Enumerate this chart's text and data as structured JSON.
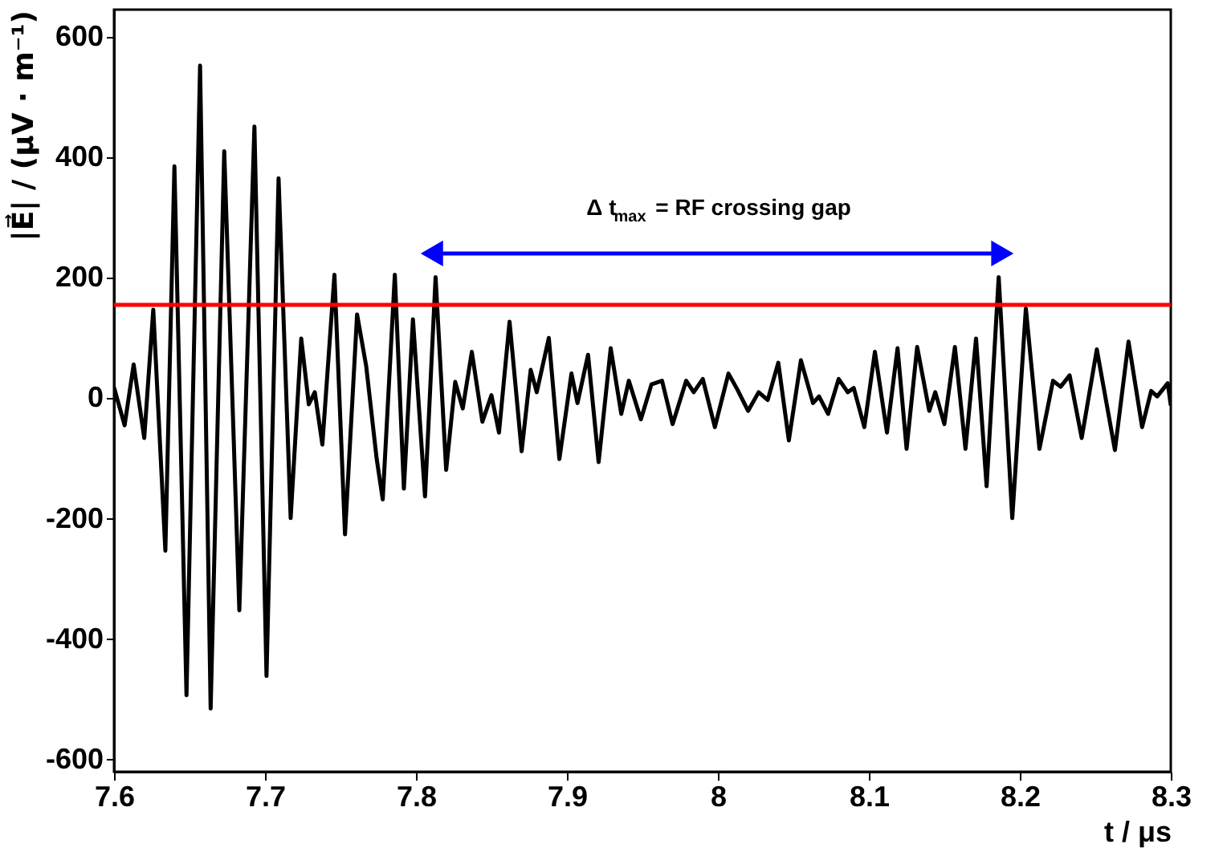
{
  "chart_data": {
    "type": "line",
    "xlabel": "t / μs",
    "ylabel": "|E⃗| / (μV · m⁻¹)",
    "x": [
      7.6,
      7.607,
      7.613,
      7.62,
      7.626,
      7.634,
      7.64,
      7.648,
      7.657,
      7.664,
      7.673,
      7.683,
      7.693,
      7.701,
      7.709,
      7.717,
      7.724,
      7.729,
      7.733,
      7.738,
      7.746,
      7.753,
      7.761,
      7.767,
      7.774,
      7.778,
      7.786,
      7.792,
      7.798,
      7.806,
      7.813,
      7.82,
      7.826,
      7.831,
      7.837,
      7.844,
      7.85,
      7.855,
      7.862,
      7.87,
      7.876,
      7.88,
      7.888,
      7.895,
      7.903,
      7.907,
      7.914,
      7.921,
      7.929,
      7.936,
      7.941,
      7.949,
      7.956,
      7.963,
      7.97,
      7.979,
      7.984,
      7.99,
      7.998,
      8.007,
      8.013,
      8.02,
      8.027,
      8.033,
      8.04,
      8.047,
      8.055,
      8.063,
      8.067,
      8.073,
      8.08,
      8.086,
      8.09,
      8.097,
      8.104,
      8.112,
      8.119,
      8.125,
      8.132,
      8.14,
      8.144,
      8.15,
      8.157,
      8.164,
      8.171,
      8.178,
      8.186,
      8.195,
      8.204,
      8.213,
      8.222,
      8.227,
      8.233,
      8.241,
      8.251,
      8.263,
      8.272,
      8.281,
      8.287,
      8.291,
      8.298,
      8.3
    ],
    "series": [
      {
        "color": "#000000",
        "values": [
          18,
          -45,
          56,
          -66,
          147,
          -253,
          385,
          -493,
          552,
          -515,
          410,
          -352,
          451,
          -461,
          365,
          -199,
          99,
          -10,
          10,
          -77,
          205,
          -226,
          139,
          54,
          -101,
          -168,
          205,
          -150,
          131,
          -163,
          201,
          -119,
          27,
          -17,
          77,
          -39,
          5,
          -57,
          127,
          -88,
          47,
          10,
          100,
          -101,
          41,
          -8,
          72,
          -106,
          83,
          -26,
          29,
          -35,
          23,
          29,
          -43,
          29,
          10,
          32,
          -48,
          41,
          14,
          -21,
          10,
          -3,
          59,
          -70,
          63,
          -8,
          3,
          -26,
          32,
          10,
          17,
          -48,
          77,
          -57,
          83,
          -84,
          85,
          -21,
          10,
          -43,
          85,
          -84,
          99,
          -146,
          201,
          -199,
          149,
          -84,
          29,
          19,
          38,
          -66,
          81,
          -86,
          94,
          -48,
          12,
          3,
          25,
          -12
        ]
      }
    ],
    "xlim": [
      7.6,
      8.3
    ],
    "ylim": [
      -620,
      645
    ],
    "xticks": [
      7.6,
      7.7,
      7.8,
      7.9,
      8,
      8.1,
      8.2,
      8.3
    ],
    "yticks": [
      -600,
      -400,
      -200,
      0,
      200,
      400,
      600
    ],
    "ref_lines": [
      {
        "axis": "y",
        "value": 155,
        "color": "#ff0000"
      }
    ],
    "annotations": [
      "Δ t$_{max}$ = RF crossing gap"
    ],
    "grid": false,
    "marker": "none",
    "line_style": "solid"
  }
}
